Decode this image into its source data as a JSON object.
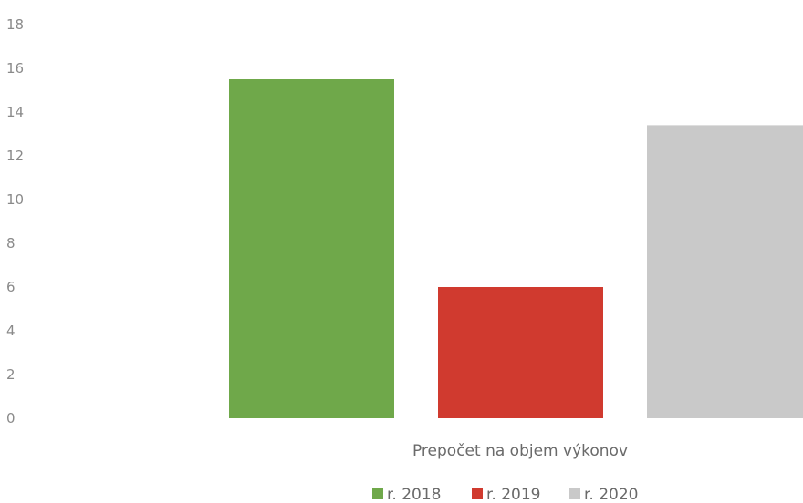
{
  "chart_data": {
    "type": "bar",
    "categories": [
      "Prepočet na objem výkonov"
    ],
    "series": [
      {
        "name": "r. 2018",
        "values": [
          15.5
        ],
        "color": "#6fa84a"
      },
      {
        "name": "r. 2019",
        "values": [
          6.0
        ],
        "color": "#d03a2f"
      },
      {
        "name": "r. 2020",
        "values": [
          13.4
        ],
        "color": "#c9c9c9"
      }
    ],
    "yticks": [
      "0",
      "2",
      "4",
      "6",
      "8",
      "10",
      "12",
      "14",
      "16",
      "18"
    ],
    "ylim": [
      0,
      18
    ],
    "grid": false,
    "legend_position": "bottom"
  }
}
